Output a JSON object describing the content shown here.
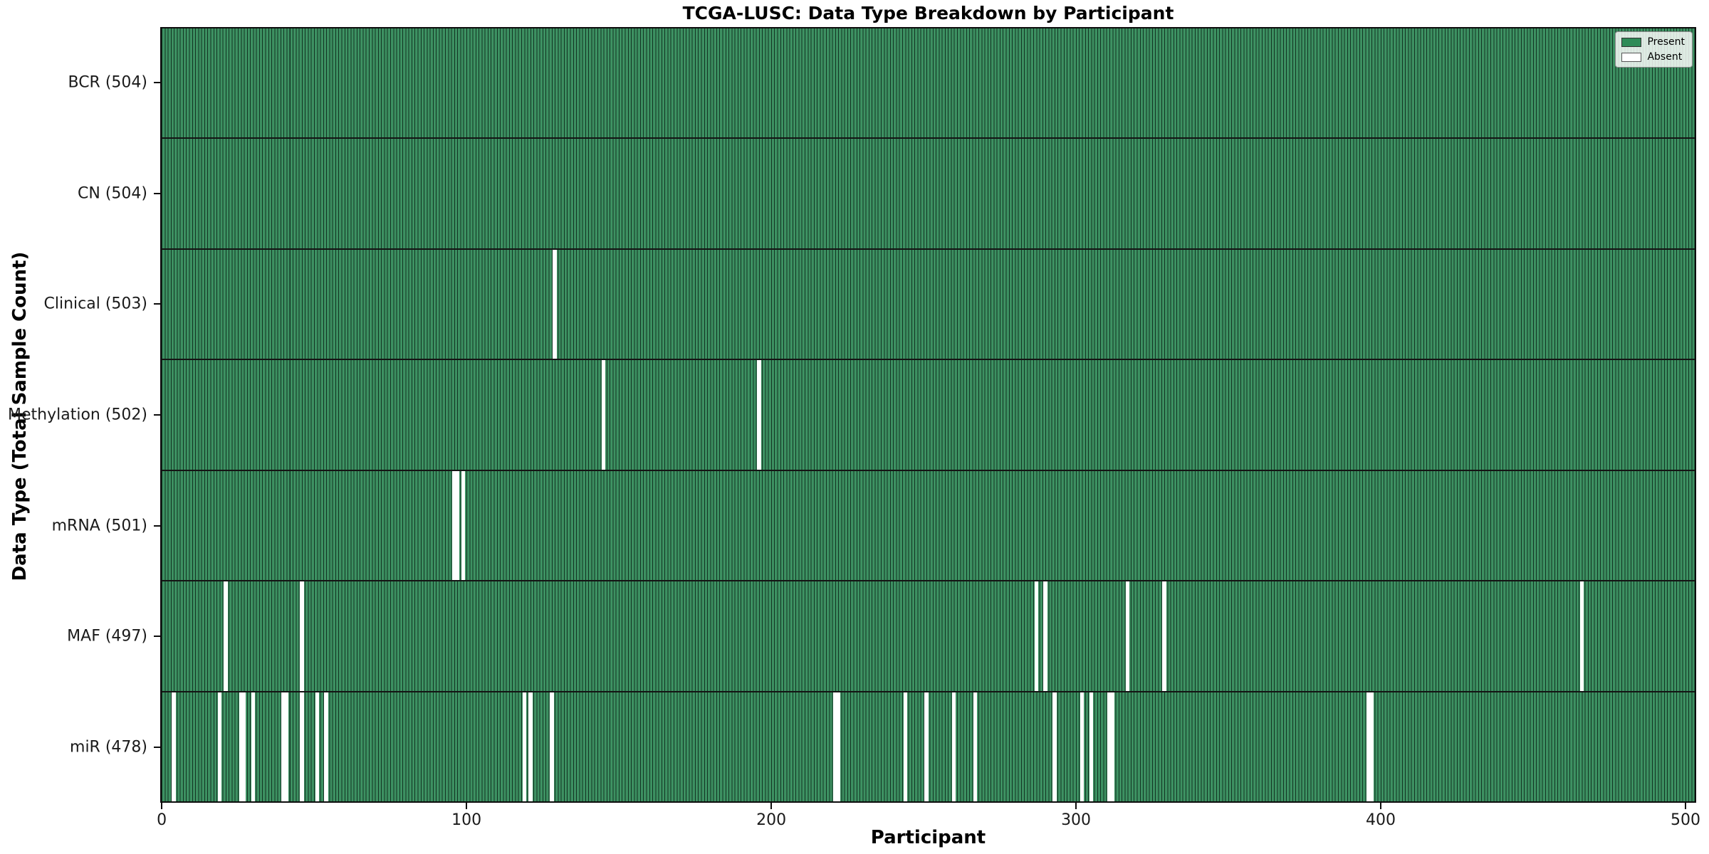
{
  "chart_data": {
    "type": "heatmap",
    "title": "TCGA-LUSC: Data Type Breakdown by Participant",
    "xlabel": "Participant",
    "ylabel": "Data Type (Total Sample Count)",
    "n_participants": 504,
    "xlim": [
      -0.5,
      503.5
    ],
    "x_ticks": [
      0,
      100,
      200,
      300,
      400,
      500
    ],
    "grid": false,
    "legend_position": "upper right",
    "present_color": "#3d9162",
    "bar_edge_color": "#123322",
    "absent_color": "#ffffff",
    "legend": {
      "entries": [
        {
          "label": "Present",
          "color": "#2e8b57",
          "border": "#333333"
        },
        {
          "label": "Absent",
          "color": "#ffffff",
          "border": "#555555"
        }
      ]
    },
    "rows": [
      {
        "label": "BCR (504)",
        "total": 504,
        "absent_participants": []
      },
      {
        "label": "CN (504)",
        "total": 504,
        "absent_participants": []
      },
      {
        "label": "Clinical (503)",
        "total": 503,
        "absent_participants": [
          129
        ]
      },
      {
        "label": "Methylation (502)",
        "total": 502,
        "absent_participants": [
          145,
          196
        ]
      },
      {
        "label": "mRNA (501)",
        "total": 501,
        "absent_participants": [
          96,
          97,
          99
        ]
      },
      {
        "label": "MAF (497)",
        "total": 497,
        "absent_participants": [
          21,
          46,
          287,
          290,
          317,
          329,
          466
        ]
      },
      {
        "label": "miR (478)",
        "total": 478,
        "absent_participants": [
          4,
          19,
          26,
          27,
          30,
          40,
          41,
          46,
          51,
          54,
          119,
          121,
          128,
          221,
          222,
          244,
          251,
          260,
          267,
          293,
          302,
          305,
          311,
          312,
          396,
          397
        ]
      }
    ]
  }
}
